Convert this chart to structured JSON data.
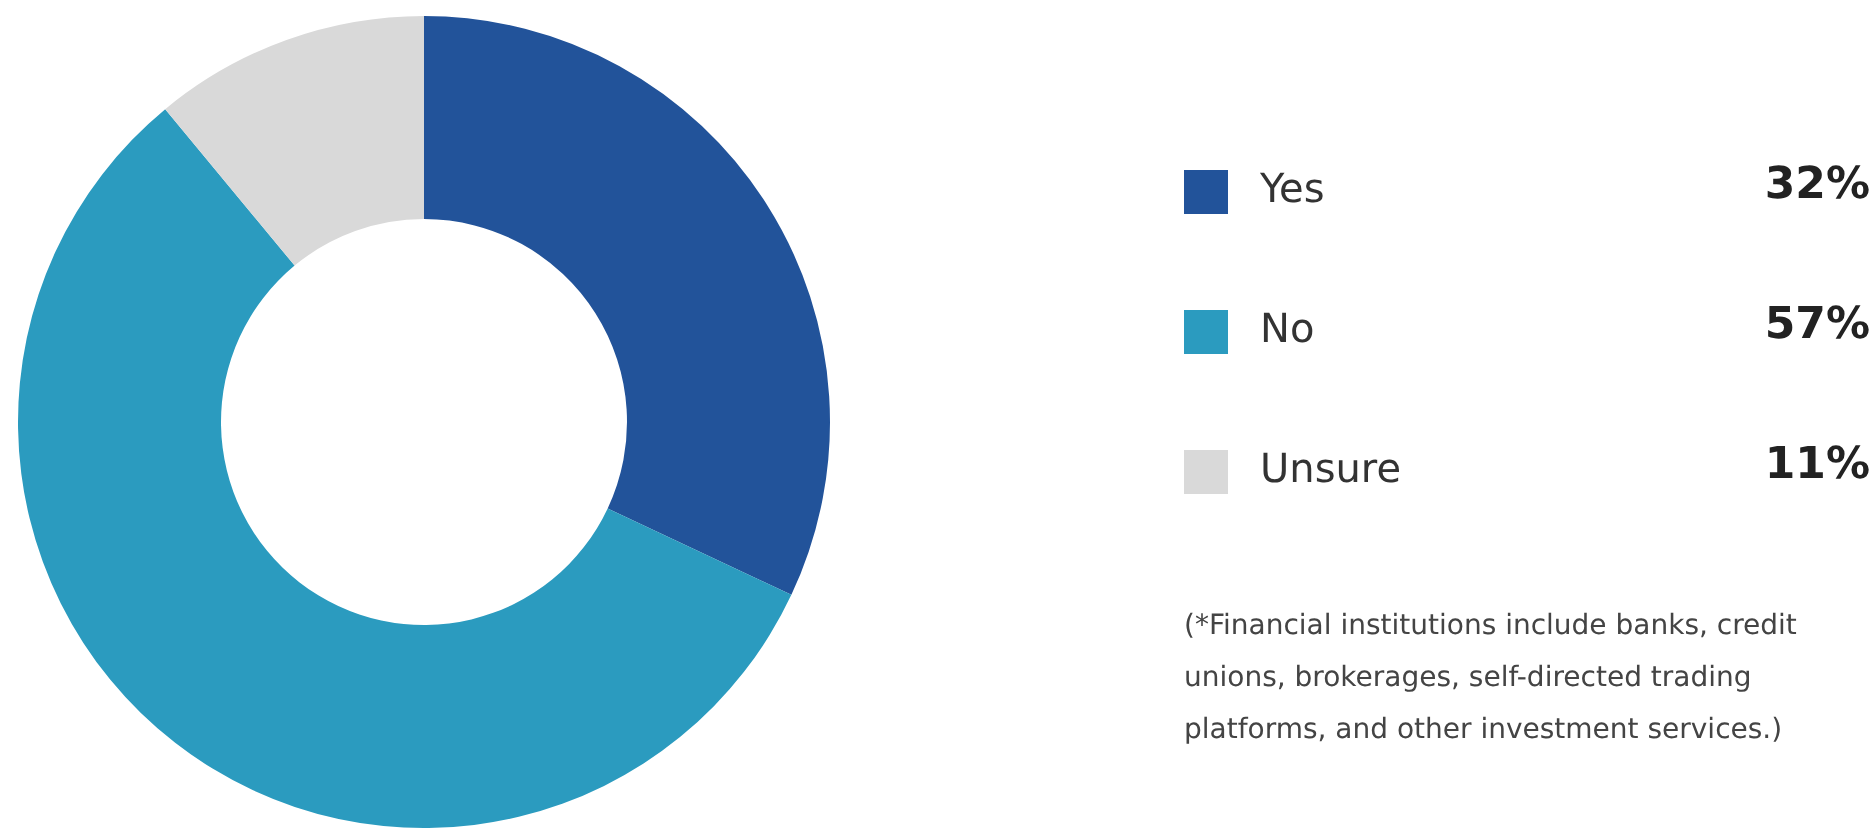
{
  "chart_data": {
    "type": "donut",
    "categories": [
      "Yes",
      "No",
      "Unsure"
    ],
    "values": [
      32,
      57,
      11
    ],
    "colors": [
      "#22539a",
      "#2b9bbf",
      "#d9d9d9"
    ],
    "value_labels": [
      "32%",
      "57%",
      "11%"
    ],
    "legend": "right",
    "annotations": [
      "(*Financial institutions include banks, credit unions, brokerages, self-directed trading platforms, and other investment services.)"
    ]
  }
}
